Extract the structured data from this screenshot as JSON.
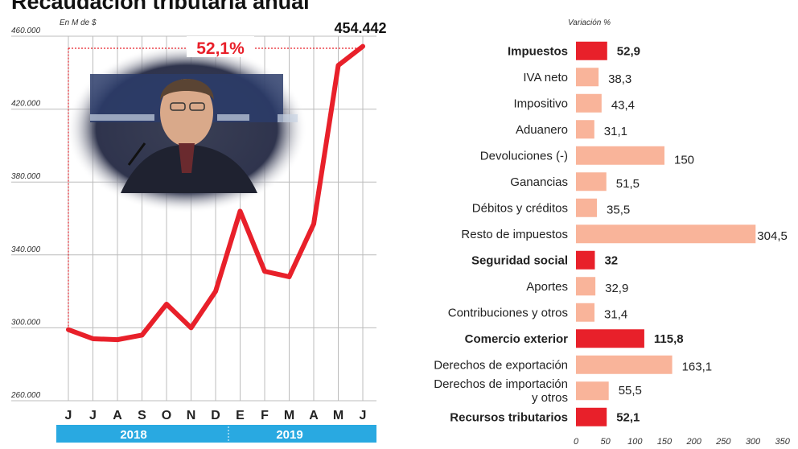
{
  "title": "Recaudación tributaria anual",
  "chart_data": [
    {
      "type": "line",
      "unit_label": "En M de $",
      "yticks": [
        "460.000",
        "420.000",
        "380.000",
        "340.000",
        "300.000",
        "260.000"
      ],
      "ylim": [
        260000,
        460000
      ],
      "months": [
        "J",
        "J",
        "A",
        "S",
        "O",
        "N",
        "D",
        "E",
        "F",
        "M",
        "A",
        "M",
        "J"
      ],
      "values": [
        299000,
        294000,
        293500,
        296000,
        313000,
        300000,
        320000,
        364000,
        331000,
        328000,
        357000,
        444000,
        454442
      ],
      "year_labels": [
        "2018",
        "2019"
      ],
      "last_value_label": "454.442",
      "growth_label": "52,1%",
      "grid": true,
      "colors": {
        "line": "#e8202a",
        "bar": "#29a9e1",
        "growth": "#e8202a"
      }
    },
    {
      "type": "bar",
      "orientation": "horizontal",
      "axis_label": "Variación %",
      "xticks": [
        "0",
        "50",
        "100",
        "150",
        "200",
        "250",
        "300",
        "350"
      ],
      "xlim": [
        0,
        350
      ],
      "categories": [
        {
          "name": "Impuestos",
          "value": 52.9,
          "label": "52,9",
          "bold": true
        },
        {
          "name": "IVA neto",
          "value": 38.3,
          "label": "38,3",
          "bold": false
        },
        {
          "name": "Impositivo",
          "value": 43.4,
          "label": "43,4",
          "bold": false
        },
        {
          "name": "Aduanero",
          "value": 31.1,
          "label": "31,1",
          "bold": false
        },
        {
          "name": "Devoluciones (-)",
          "value": 150,
          "label": "150",
          "bold": false
        },
        {
          "name": "Ganancias",
          "value": 51.5,
          "label": "51,5",
          "bold": false
        },
        {
          "name": "Débitos y créditos",
          "value": 35.5,
          "label": "35,5",
          "bold": false
        },
        {
          "name": "Resto de impuestos",
          "value": 304.5,
          "label": "304,5",
          "bold": false
        },
        {
          "name": "Seguridad social",
          "value": 32,
          "label": "32",
          "bold": true
        },
        {
          "name": "Aportes",
          "value": 32.9,
          "label": "32,9",
          "bold": false
        },
        {
          "name": "Contribuciones y otros",
          "value": 31.4,
          "label": "31,4",
          "bold": false
        },
        {
          "name": "Comercio exterior",
          "value": 115.8,
          "label": "115,8",
          "bold": true
        },
        {
          "name": "Derechos de exportación",
          "value": 163.1,
          "label": "163,1",
          "bold": false
        },
        {
          "name": "Derechos de importación\ny otros",
          "value": 55.5,
          "label": "55,5",
          "bold": false
        },
        {
          "name": "Recursos tributarios",
          "value": 52.1,
          "label": "52,1",
          "bold": true
        }
      ],
      "colors": {
        "total": "#e8202a",
        "sub": "#f9b49a"
      }
    }
  ]
}
